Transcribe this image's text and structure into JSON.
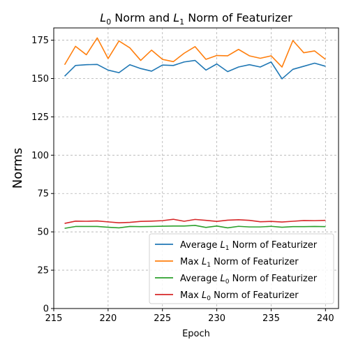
{
  "chart_data": {
    "type": "line",
    "title": "$L_0$ Norm and $L_1$ Norm of Featurizer",
    "title_parts": [
      "L",
      "0",
      " Norm and ",
      "L",
      "1",
      " Norm of Featurizer"
    ],
    "xlabel": "Epoch",
    "ylabel": "Norms",
    "xlim": [
      215,
      241.2
    ],
    "ylim": [
      0,
      183
    ],
    "xticks": [
      215,
      220,
      225,
      230,
      235,
      240
    ],
    "yticks": [
      0,
      25,
      50,
      75,
      100,
      125,
      150,
      175
    ],
    "grid": true,
    "legend_position": "lower-right",
    "x": [
      216,
      217,
      218,
      219,
      220,
      221,
      222,
      223,
      224,
      225,
      226,
      227,
      228,
      229,
      230,
      231,
      232,
      233,
      234,
      235,
      236,
      237,
      238,
      239,
      240
    ],
    "series": [
      {
        "name": "Average L1 Norm of Featurizer",
        "legend_parts": [
          "Average ",
          "L",
          "1",
          " Norm of Featurizer"
        ],
        "color": "#1f77b4",
        "values": [
          151.5,
          158.5,
          159.0,
          159.2,
          155.5,
          153.8,
          159.0,
          156.5,
          154.8,
          158.8,
          158.5,
          160.8,
          161.8,
          155.5,
          159.5,
          154.5,
          157.5,
          159.0,
          157.5,
          160.8,
          149.8,
          156.0,
          158.0,
          160.0,
          158.0
        ]
      },
      {
        "name": "Max L1 Norm of Featurizer",
        "legend_parts": [
          "Max ",
          "L",
          "1",
          " Norm of Featurizer"
        ],
        "color": "#ff7f0e",
        "values": [
          159.0,
          171.0,
          165.5,
          176.5,
          163.0,
          174.5,
          170.0,
          161.8,
          168.5,
          162.5,
          161.0,
          166.5,
          170.8,
          162.5,
          165.0,
          164.8,
          169.0,
          164.8,
          163.2,
          164.8,
          157.5,
          174.8,
          166.8,
          168.0,
          162.5
        ]
      },
      {
        "name": "Average L0 Norm of Featurizer",
        "legend_parts": [
          "Average ",
          "L",
          "0",
          " Norm of Featurizer"
        ],
        "color": "#2ca02c",
        "values": [
          52.3,
          53.5,
          53.5,
          53.5,
          53.0,
          52.6,
          53.5,
          53.4,
          53.5,
          53.7,
          53.8,
          53.8,
          54.2,
          52.9,
          53.8,
          52.6,
          53.6,
          53.2,
          53.2,
          53.6,
          53.0,
          53.4,
          53.4,
          53.5,
          53.4
        ]
      },
      {
        "name": "Max L0 Norm of Featurizer",
        "legend_parts": [
          "Max ",
          "L",
          "0",
          " Norm of Featurizer"
        ],
        "color": "#d62728",
        "values": [
          55.5,
          57.0,
          56.9,
          57.1,
          56.5,
          55.9,
          56.2,
          56.8,
          57.0,
          57.3,
          58.2,
          56.9,
          58.1,
          57.5,
          56.8,
          57.6,
          57.9,
          57.5,
          56.6,
          56.8,
          56.4,
          56.9,
          57.4,
          57.3,
          57.5
        ]
      }
    ]
  }
}
